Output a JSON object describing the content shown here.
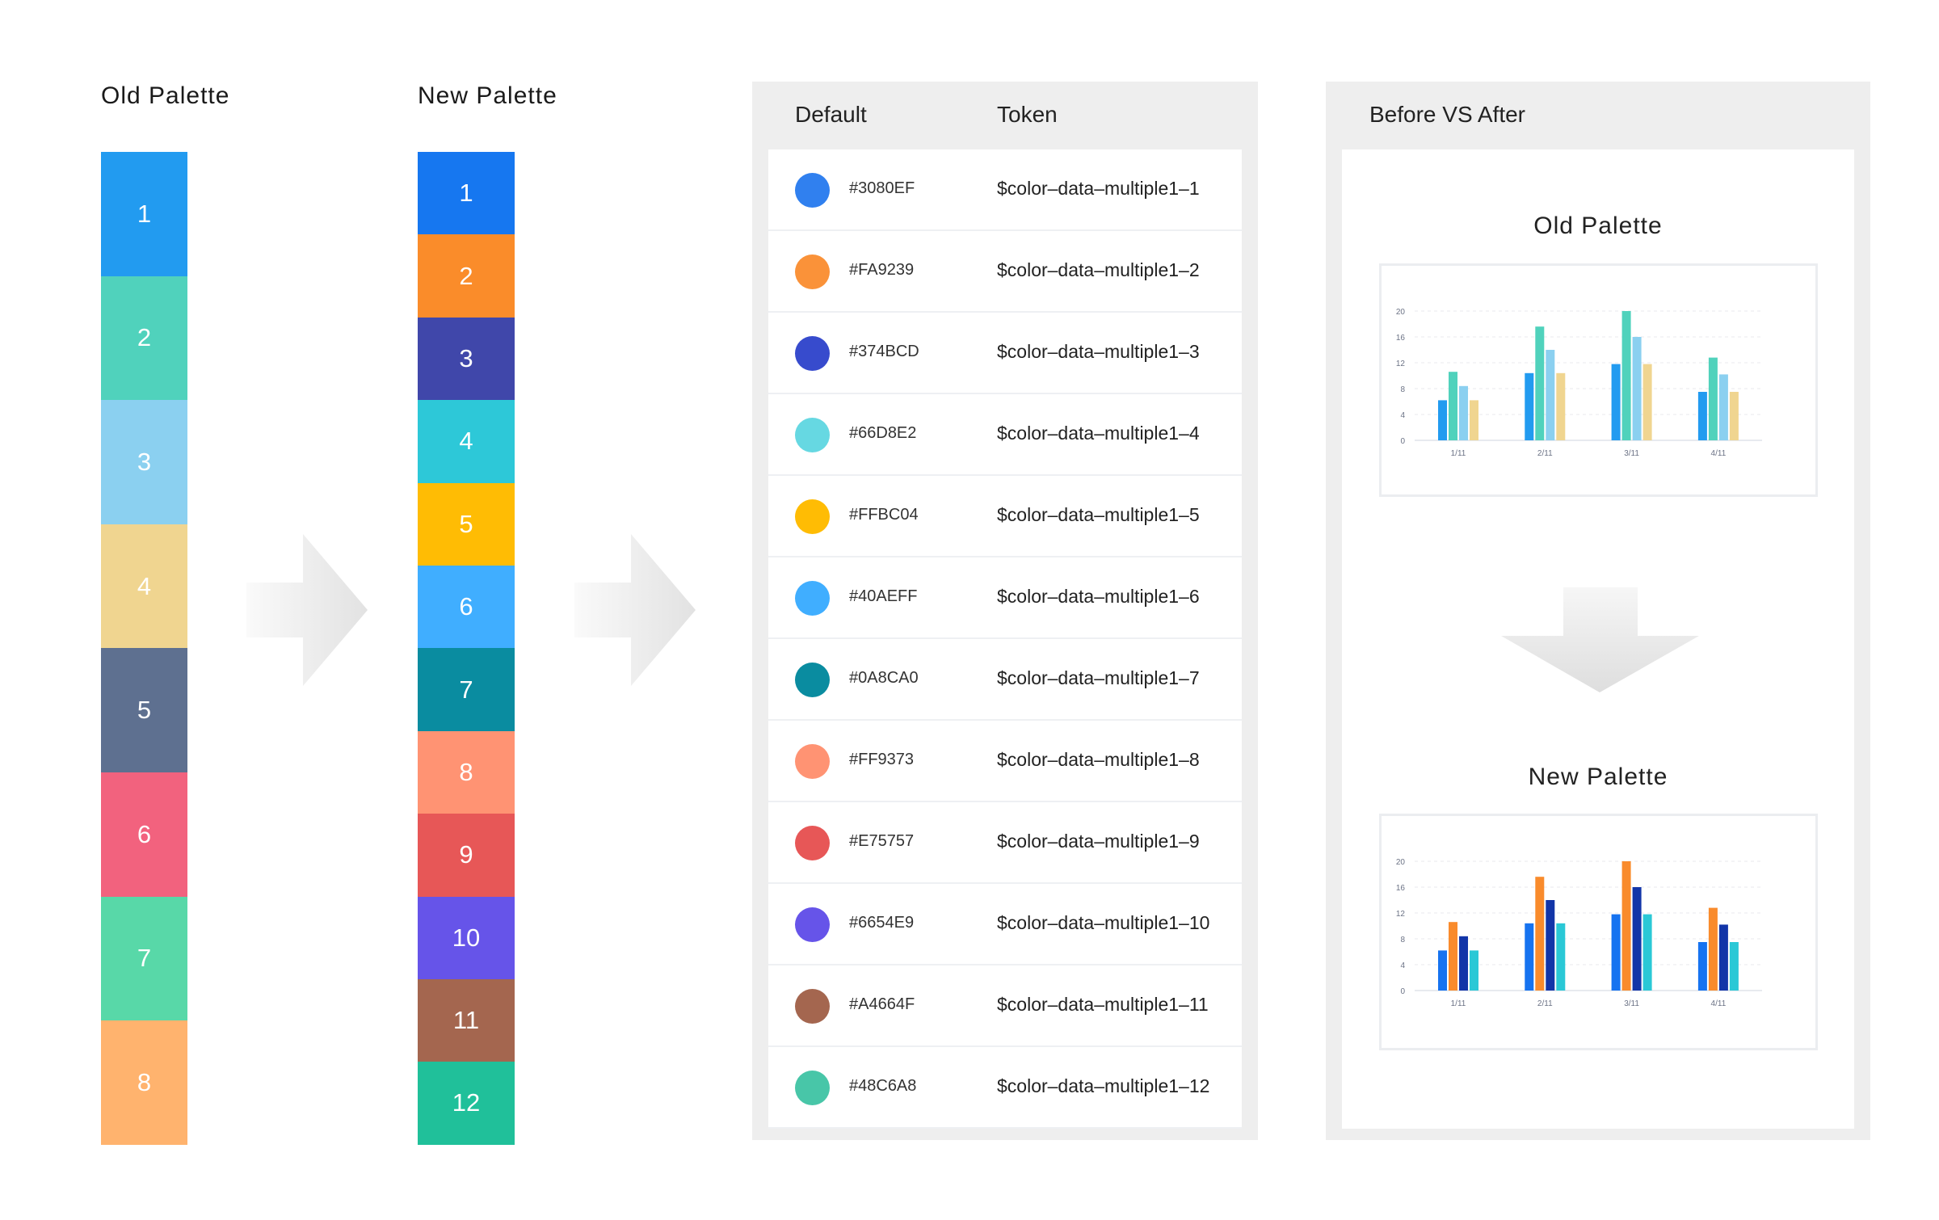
{
  "old_palette": {
    "title": "Old Palette",
    "blocks": [
      {
        "label": "1",
        "color": "#229BF0"
      },
      {
        "label": "2",
        "color": "#50D2BC"
      },
      {
        "label": "3",
        "color": "#8BD0F0"
      },
      {
        "label": "4",
        "color": "#F0D590"
      },
      {
        "label": "5",
        "color": "#5E7090"
      },
      {
        "label": "6",
        "color": "#F2627E"
      },
      {
        "label": "7",
        "color": "#58D8A8"
      },
      {
        "label": "8",
        "color": "#FFB36E"
      }
    ]
  },
  "new_palette": {
    "title": "New Palette",
    "blocks": [
      {
        "label": "1",
        "color": "#1677F0"
      },
      {
        "label": "2",
        "color": "#FA8C2A"
      },
      {
        "label": "3",
        "color": "#4047AA"
      },
      {
        "label": "4",
        "color": "#2DC8D8"
      },
      {
        "label": "5",
        "color": "#FFBC04"
      },
      {
        "label": "6",
        "color": "#40AEFF"
      },
      {
        "label": "7",
        "color": "#0A8CA0"
      },
      {
        "label": "8",
        "color": "#FF9373"
      },
      {
        "label": "9",
        "color": "#E75757"
      },
      {
        "label": "10",
        "color": "#6654E9"
      },
      {
        "label": "11",
        "color": "#A4664F"
      },
      {
        "label": "12",
        "color": "#20C09A"
      }
    ]
  },
  "token_table": {
    "headers": {
      "default": "Default",
      "token": "Token"
    },
    "rows": [
      {
        "hex": "#3080EF",
        "token": "$color–data–multiple1–1"
      },
      {
        "hex": "#FA9239",
        "token": "$color–data–multiple1–2"
      },
      {
        "hex": "#374BCD",
        "token": "$color–data–multiple1–3"
      },
      {
        "hex": "#66D8E2",
        "token": "$color–data–multiple1–4"
      },
      {
        "hex": "#FFBC04",
        "token": "$color–data–multiple1–5"
      },
      {
        "hex": "#40AEFF",
        "token": "$color–data–multiple1–6"
      },
      {
        "hex": "#0A8CA0",
        "token": "$color–data–multiple1–7"
      },
      {
        "hex": "#FF9373",
        "token": "$color–data–multiple1–8"
      },
      {
        "hex": "#E75757",
        "token": "$color–data–multiple1–9"
      },
      {
        "hex": "#6654E9",
        "token": "$color–data–multiple1–10"
      },
      {
        "hex": "#A4664F",
        "token": "$color–data–multiple1–11"
      },
      {
        "hex": "#48C6A8",
        "token": "$color–data–multiple1–12"
      }
    ]
  },
  "comparison": {
    "title": "Before VS After"
  },
  "chart_data": [
    {
      "type": "bar",
      "title": "Old Palette",
      "categories": [
        "1/11",
        "2/11",
        "3/11",
        "4/11"
      ],
      "yticks": [
        "0",
        "4",
        "8",
        "12",
        "16",
        "20"
      ],
      "ylim": [
        0,
        20
      ],
      "grid": true,
      "series": [
        {
          "name": "1",
          "color": "#229BF0",
          "values": [
            6.2,
            10.4,
            11.8,
            7.5
          ]
        },
        {
          "name": "2",
          "color": "#50D2BC",
          "values": [
            10.6,
            17.6,
            20,
            12.8
          ]
        },
        {
          "name": "3",
          "color": "#8BD0F0",
          "values": [
            8.4,
            14,
            16,
            10.2
          ]
        },
        {
          "name": "4",
          "color": "#F0D590",
          "values": [
            6.2,
            10.4,
            11.8,
            7.5
          ]
        }
      ]
    },
    {
      "type": "bar",
      "title": "New Palette",
      "categories": [
        "1/11",
        "2/11",
        "3/11",
        "4/11"
      ],
      "yticks": [
        "0",
        "4",
        "8",
        "12",
        "16",
        "20"
      ],
      "ylim": [
        0,
        20
      ],
      "grid": true,
      "series": [
        {
          "name": "1",
          "color": "#1673F0",
          "values": [
            6.2,
            10.4,
            11.8,
            7.5
          ]
        },
        {
          "name": "2",
          "color": "#F98B2C",
          "values": [
            10.6,
            17.6,
            20,
            12.8
          ]
        },
        {
          "name": "3",
          "color": "#1235A8",
          "values": [
            8.4,
            14,
            16,
            10.2
          ]
        },
        {
          "name": "4",
          "color": "#2AC8D6",
          "values": [
            6.2,
            10.4,
            11.8,
            7.5
          ]
        }
      ]
    }
  ]
}
